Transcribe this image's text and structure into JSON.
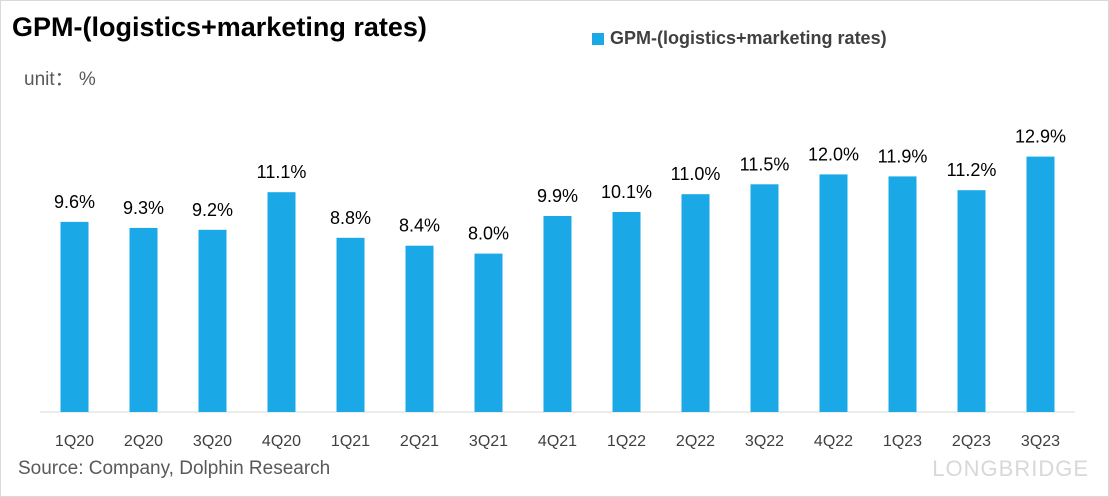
{
  "title": "GPM-(logistics+marketing rates)",
  "unit": "unit： %",
  "legend": {
    "label": "GPM-(logistics+marketing rates)",
    "color": "#1aa8e6"
  },
  "source": "Source: Company, Dolphin Research",
  "watermark": "LONGBRIDGE",
  "chart_data": {
    "type": "bar",
    "categories": [
      "1Q20",
      "2Q20",
      "3Q20",
      "4Q20",
      "1Q21",
      "2Q21",
      "3Q21",
      "4Q21",
      "1Q22",
      "2Q22",
      "3Q22",
      "4Q22",
      "1Q23",
      "2Q23",
      "3Q23"
    ],
    "series": [
      {
        "name": "GPM-(logistics+marketing rates)",
        "values": [
          9.6,
          9.3,
          9.2,
          11.1,
          8.8,
          8.4,
          8.0,
          9.9,
          10.1,
          11.0,
          11.5,
          12.0,
          11.9,
          11.2,
          12.9
        ],
        "labels": [
          "9.6%",
          "9.3%",
          "9.2%",
          "11.1%",
          "8.8%",
          "8.4%",
          "8.0%",
          "9.9%",
          "10.1%",
          "11.0%",
          "11.5%",
          "12.0%",
          "11.9%",
          "11.2%",
          "12.9%"
        ]
      }
    ],
    "title": "GPM-(logistics+marketing rates)",
    "ylabel": "unit： %",
    "ylim": [
      0,
      13.5
    ],
    "grid": false,
    "legend_position": "top-right",
    "bar_color": "#1aa8e6"
  }
}
